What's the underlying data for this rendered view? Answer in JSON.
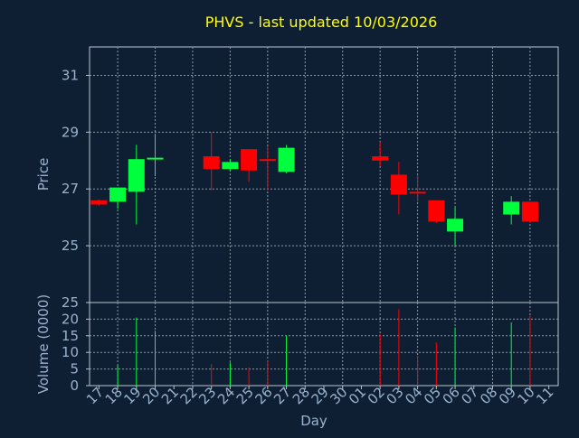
{
  "chart_data": [
    {
      "type": "candlestick",
      "title": "PHVS - last updated 10/03/2026",
      "ylabel": "Price",
      "ylim": [
        23.0,
        32.0
      ],
      "yticks": [
        25,
        27,
        29,
        31
      ],
      "grid": true,
      "categories": [
        "17",
        "18",
        "19",
        "20",
        "21",
        "22",
        "23",
        "24",
        "25",
        "26",
        "27",
        "28",
        "29",
        "30",
        "01",
        "02",
        "03",
        "04",
        "05",
        "06",
        "07",
        "08",
        "09",
        "10",
        "11"
      ],
      "candles": [
        {
          "x": "17",
          "open": 26.6,
          "close": 26.45,
          "high": 26.62,
          "low": 26.4
        },
        {
          "x": "18",
          "open": 26.55,
          "close": 27.05,
          "high": 27.05,
          "low": 26.3
        },
        {
          "x": "19",
          "open": 26.9,
          "close": 28.05,
          "high": 28.55,
          "low": 25.75
        },
        {
          "x": "20",
          "open": 28.05,
          "close": 28.1,
          "high": 28.9,
          "low": 27.45
        },
        {
          "x": "23",
          "open": 28.15,
          "close": 27.7,
          "high": 29.0,
          "low": 26.95
        },
        {
          "x": "24",
          "open": 27.7,
          "close": 27.95,
          "high": 28.05,
          "low": 27.65
        },
        {
          "x": "25",
          "open": 28.4,
          "close": 27.65,
          "high": 28.4,
          "low": 27.25
        },
        {
          "x": "26",
          "open": 28.05,
          "close": 28.0,
          "high": 28.5,
          "low": 26.95
        },
        {
          "x": "27",
          "open": 27.6,
          "close": 28.45,
          "high": 28.55,
          "low": 27.55
        },
        {
          "x": "02",
          "open": 28.15,
          "close": 28.0,
          "high": 28.65,
          "low": 27.8
        },
        {
          "x": "03",
          "open": 27.5,
          "close": 26.8,
          "high": 27.95,
          "low": 26.1
        },
        {
          "x": "04",
          "open": 26.9,
          "close": 26.85,
          "high": 27.5,
          "low": 26.55
        },
        {
          "x": "05",
          "open": 26.6,
          "close": 25.85,
          "high": 26.6,
          "low": 25.8
        },
        {
          "x": "06",
          "open": 25.5,
          "close": 25.95,
          "high": 26.35,
          "low": 25.0
        },
        {
          "x": "09",
          "open": 26.1,
          "close": 26.55,
          "high": 26.75,
          "low": 25.75
        },
        {
          "x": "10",
          "open": 26.55,
          "close": 25.85,
          "high": 26.55,
          "low": 25.8
        }
      ]
    },
    {
      "type": "bar",
      "ylabel": "Volume (0000)",
      "xlabel": "Day",
      "ylim": [
        0,
        25
      ],
      "yticks": [
        0,
        5,
        10,
        15,
        20,
        25
      ],
      "grid": true,
      "categories": [
        "17",
        "18",
        "19",
        "20",
        "21",
        "22",
        "23",
        "24",
        "25",
        "26",
        "27",
        "28",
        "29",
        "30",
        "01",
        "02",
        "03",
        "04",
        "05",
        "06",
        "07",
        "08",
        "09",
        "10",
        "11"
      ],
      "bars": [
        {
          "x": "18",
          "value": 6,
          "direction": "up"
        },
        {
          "x": "19",
          "value": 20.5,
          "direction": "up"
        },
        {
          "x": "20",
          "value": 16.5,
          "direction": "up"
        },
        {
          "x": "23",
          "value": 6.5,
          "direction": "down"
        },
        {
          "x": "24",
          "value": 7,
          "direction": "up"
        },
        {
          "x": "25",
          "value": 5.5,
          "direction": "down"
        },
        {
          "x": "26",
          "value": 7.5,
          "direction": "down"
        },
        {
          "x": "27",
          "value": 15,
          "direction": "up"
        },
        {
          "x": "02",
          "value": 15.5,
          "direction": "down"
        },
        {
          "x": "03",
          "value": 23,
          "direction": "down"
        },
        {
          "x": "04",
          "value": 9,
          "direction": "down"
        },
        {
          "x": "05",
          "value": 13,
          "direction": "down"
        },
        {
          "x": "06",
          "value": 17.5,
          "direction": "up"
        },
        {
          "x": "09",
          "value": 19,
          "direction": "up"
        },
        {
          "x": "10",
          "value": 21,
          "direction": "down"
        }
      ]
    }
  ],
  "colors": {
    "background": "#0f1f33",
    "title": "#ffff00",
    "axis_text": "#99b3cc",
    "axis_line": "#b8c4cf",
    "grid": "#8c99a6",
    "up": "#00ff3c",
    "down": "#ff0000"
  }
}
